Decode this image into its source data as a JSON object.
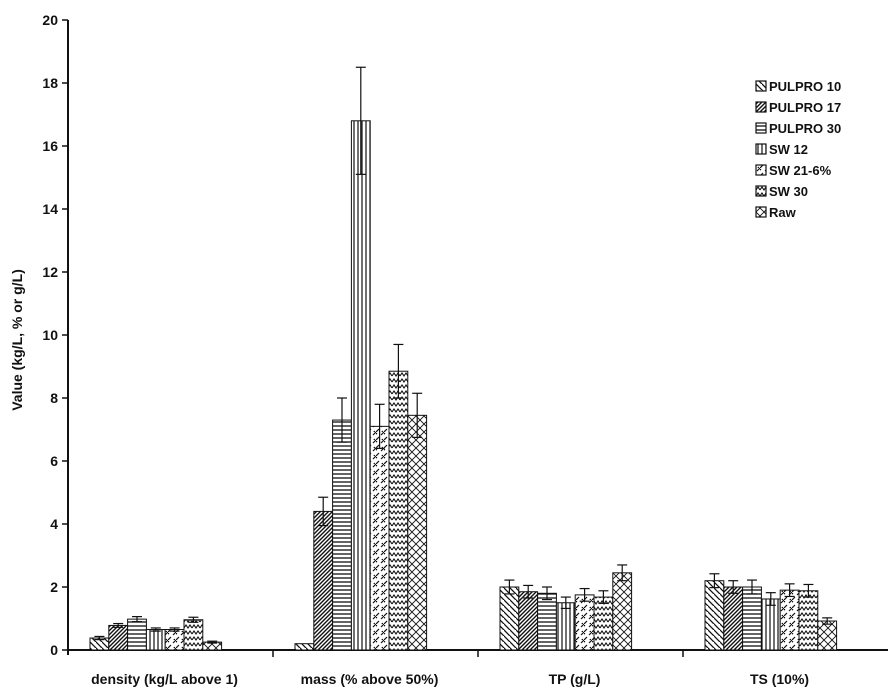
{
  "chart_data": {
    "type": "bar",
    "title": "",
    "ylabel": "Value (kg/L, % or g/L)",
    "xlabel": "",
    "ylim": [
      0,
      20
    ],
    "yticks": [
      0,
      2,
      4,
      6,
      8,
      10,
      12,
      14,
      16,
      18,
      20
    ],
    "grid": false,
    "legend_position": "top-right",
    "categories": [
      "density (kg/L above 1)",
      "mass (% above 50%)",
      "TP (g/L)",
      "TS (10%)"
    ],
    "series": [
      {
        "name": "PULPRO 10",
        "values": [
          0.38,
          0.2,
          2.0,
          2.2
        ],
        "errors": [
          0.05,
          0.0,
          0.22,
          0.22
        ]
      },
      {
        "name": "PULPRO 17",
        "values": [
          0.78,
          4.4,
          1.85,
          2.0
        ],
        "errors": [
          0.06,
          0.45,
          0.2,
          0.2
        ]
      },
      {
        "name": "PULPRO 30",
        "values": [
          0.98,
          7.3,
          1.8,
          2.0
        ],
        "errors": [
          0.08,
          0.7,
          0.2,
          0.22
        ]
      },
      {
        "name": "SW 12",
        "values": [
          0.65,
          16.8,
          1.5,
          1.62
        ],
        "errors": [
          0.05,
          1.7,
          0.18,
          0.2
        ]
      },
      {
        "name": "SW 21-6%",
        "values": [
          0.65,
          7.1,
          1.75,
          1.9
        ],
        "errors": [
          0.05,
          0.7,
          0.2,
          0.2
        ]
      },
      {
        "name": "SW 30",
        "values": [
          0.96,
          8.85,
          1.68,
          1.88
        ],
        "errors": [
          0.08,
          0.85,
          0.2,
          0.2
        ]
      },
      {
        "name": "Raw",
        "values": [
          0.25,
          7.45,
          2.45,
          0.92
        ],
        "errors": [
          0.03,
          0.7,
          0.25,
          0.1
        ]
      }
    ],
    "patterns": [
      "diag-down",
      "diag-up-dense",
      "horizontal",
      "vertical",
      "dashed-diag",
      "zigzag",
      "lattice"
    ]
  }
}
